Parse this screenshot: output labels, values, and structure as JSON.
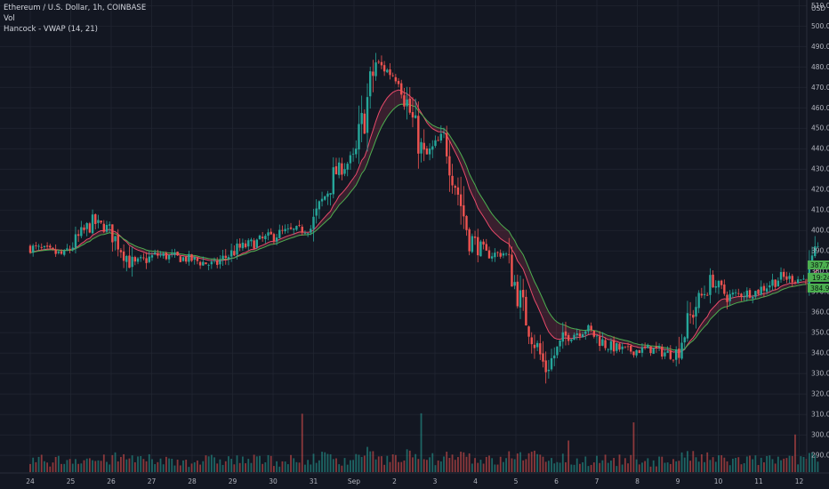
{
  "header": {
    "symbol": "Ethereum / U.S. Dollar, 1h, COINBASE",
    "indicator_1": "Vol",
    "indicator_2": "Hancock - VWAP (14, 21)"
  },
  "colors": {
    "background": "#131722",
    "grid": "#232733",
    "up": "#26a69a",
    "down": "#ef5350",
    "vwap_fast": "#e84a6a",
    "vwap_slow": "#4caf50",
    "tag": "#4caf50",
    "text": "#b2b5be"
  },
  "chart_data": {
    "type": "candlestick",
    "y_axis": {
      "currency": "USD",
      "ticks": [
        "510.00",
        "500.00",
        "490.00",
        "480.00",
        "470.00",
        "460.00",
        "450.00",
        "440.00",
        "430.00",
        "420.00",
        "410.00",
        "400.00",
        "390.00",
        "380.00",
        "370.00",
        "360.00",
        "350.00",
        "340.00",
        "330.00",
        "320.00",
        "310.00",
        "300.00",
        "290.00"
      ],
      "range": [
        287,
        511
      ]
    },
    "x_axis": {
      "ticks": [
        "24",
        "25",
        "26",
        "27",
        "28",
        "29",
        "30",
        "31",
        "Sep",
        "2",
        "3",
        "4",
        "5",
        "6",
        "7",
        "8",
        "9",
        "10",
        "11",
        "12"
      ]
    },
    "price_tags": [
      "387.72",
      "19:24",
      "384.93"
    ],
    "price_path": [
      {
        "t": 0,
        "p": 392
      },
      {
        "t": 0.9,
        "p": 388
      },
      {
        "t": 1.6,
        "p": 404
      },
      {
        "t": 2.0,
        "p": 401
      },
      {
        "t": 2.6,
        "p": 383
      },
      {
        "t": 3.2,
        "p": 388
      },
      {
        "t": 4.0,
        "p": 386
      },
      {
        "t": 4.6,
        "p": 383
      },
      {
        "t": 5.2,
        "p": 391
      },
      {
        "t": 6.3,
        "p": 399
      },
      {
        "t": 7.0,
        "p": 401
      },
      {
        "t": 7.6,
        "p": 428
      },
      {
        "t": 8.1,
        "p": 436
      },
      {
        "t": 8.6,
        "p": 482
      },
      {
        "t": 9.2,
        "p": 474
      },
      {
        "t": 9.8,
        "p": 435
      },
      {
        "t": 10.3,
        "p": 446
      },
      {
        "t": 10.9,
        "p": 398
      },
      {
        "t": 11.3,
        "p": 388
      },
      {
        "t": 11.8,
        "p": 389
      },
      {
        "t": 12.3,
        "p": 358
      },
      {
        "t": 12.8,
        "p": 332
      },
      {
        "t": 13.3,
        "p": 348
      },
      {
        "t": 13.8,
        "p": 352
      },
      {
        "t": 14.3,
        "p": 344
      },
      {
        "t": 14.8,
        "p": 341
      },
      {
        "t": 15.4,
        "p": 342
      },
      {
        "t": 16.0,
        "p": 339
      },
      {
        "t": 16.5,
        "p": 363
      },
      {
        "t": 16.9,
        "p": 375
      },
      {
        "t": 17.3,
        "p": 368
      },
      {
        "t": 18.0,
        "p": 370
      },
      {
        "t": 18.6,
        "p": 377
      },
      {
        "t": 19.2,
        "p": 376
      },
      {
        "t": 19.5,
        "p": 388
      }
    ]
  }
}
